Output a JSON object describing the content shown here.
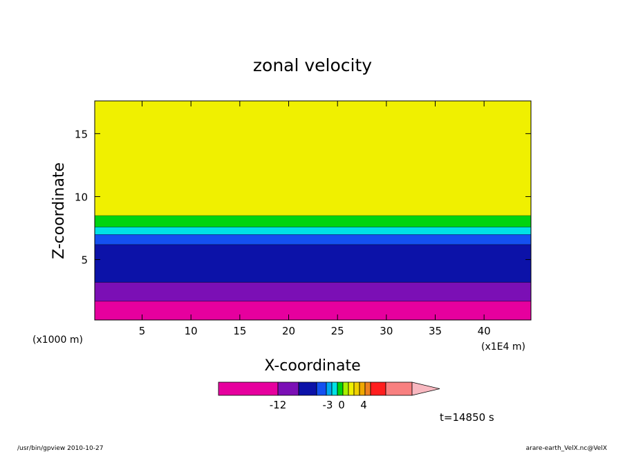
{
  "chart_data": {
    "type": "heatmap",
    "title": "zonal velocity",
    "xlabel": "X-coordinate",
    "ylabel": "Z-coordinate",
    "x_unit": "(x1E4 m)",
    "y_unit": "(x1000 m)",
    "xlim": [
      0.15,
      44.8
    ],
    "ylim": [
      0.2,
      17.6
    ],
    "x_ticks": [
      5,
      10,
      15,
      20,
      25,
      30,
      35,
      40
    ],
    "y_ticks": [
      5,
      10,
      15
    ],
    "x_tick_labels": [
      "5",
      "10",
      "15",
      "20",
      "25",
      "30",
      "35",
      "40"
    ],
    "y_tick_labels": [
      "5",
      "10",
      "15"
    ],
    "colorbar": {
      "tick_labels": [
        "-12",
        "-3",
        "0",
        "4"
      ],
      "colors": [
        "#e6009e",
        "#7b0fb5",
        "#0c12a8",
        "#1450f0",
        "#00a8f0",
        "#00e2e6",
        "#00d410",
        "#a8f000",
        "#f0f000",
        "#f0d000",
        "#f0a800",
        "#f08020",
        "#ff1e1e",
        "#f88080",
        "#f8b8c0"
      ]
    },
    "layers": [
      {
        "level": "<-12",
        "color": "#e6009e",
        "z_bottom": 0.2,
        "z_top": 1.7
      },
      {
        "level": "-12..-6",
        "color": "#7b0fb5",
        "z_bottom": 1.7,
        "z_top": 3.2
      },
      {
        "level": "-6..-4",
        "color": "#0c12a8",
        "z_bottom": 3.2,
        "z_top": 6.2
      },
      {
        "level": "-4..-3",
        "color": "#1450f0",
        "z_bottom": 6.2,
        "z_top": 7.0
      },
      {
        "level": "-3..-2",
        "color": "#00e2e6",
        "z_bottom": 7.0,
        "z_top": 7.6
      },
      {
        "level": "-2..0",
        "color": "#00d410",
        "z_bottom": 7.6,
        "z_top": 8.5
      },
      {
        "level": "0..2",
        "color": "#f0f000",
        "z_bottom": 8.5,
        "z_top": 17.6
      }
    ]
  },
  "footer": {
    "time_label": "t=14850 s",
    "program": "/usr/bin/gpview   2010-10-27",
    "source": "arare-earth_VelX.nc@VelX"
  }
}
